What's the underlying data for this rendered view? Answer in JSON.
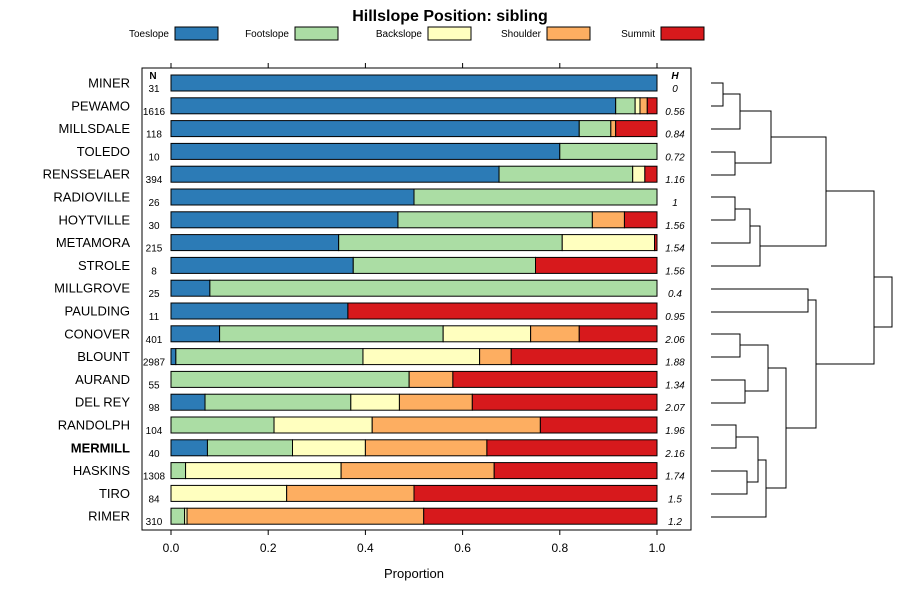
{
  "chart_data": {
    "type": "stacked-bar",
    "title": "Hillslope Position: sibling",
    "xlabel": "Proportion",
    "xlim": [
      0,
      1
    ],
    "xticks": [
      "0.0",
      "0.2",
      "0.4",
      "0.6",
      "0.8",
      "1.0"
    ],
    "n_header": "N",
    "h_header": "H",
    "highlight": "MERMILL",
    "classes": [
      {
        "name": "Toeslope",
        "color": "#2c7bb6"
      },
      {
        "name": "Footslope",
        "color": "#abdda4"
      },
      {
        "name": "Backslope",
        "color": "#ffffbf"
      },
      {
        "name": "Shoulder",
        "color": "#fdae61"
      },
      {
        "name": "Summit",
        "color": "#d7191c"
      }
    ],
    "rows": [
      {
        "name": "MINER",
        "n": "31",
        "h": "0",
        "values": [
          1.0,
          0,
          0,
          0,
          0
        ]
      },
      {
        "name": "PEWAMO",
        "n": "1616",
        "h": "0.56",
        "values": [
          0.915,
          0.04,
          0.01,
          0.015,
          0.02
        ]
      },
      {
        "name": "MILLSDALE",
        "n": "118",
        "h": "0.84",
        "values": [
          0.84,
          0.065,
          0,
          0.01,
          0.085
        ]
      },
      {
        "name": "TOLEDO",
        "n": "10",
        "h": "0.72",
        "values": [
          0.8,
          0.2,
          0,
          0,
          0
        ]
      },
      {
        "name": "RENSSELAER",
        "n": "394",
        "h": "1.16",
        "values": [
          0.675,
          0.275,
          0.025,
          0,
          0.025
        ]
      },
      {
        "name": "RADIOVILLE",
        "n": "26",
        "h": "1",
        "values": [
          0.5,
          0.5,
          0,
          0,
          0
        ]
      },
      {
        "name": "HOYTVILLE",
        "n": "30",
        "h": "1.56",
        "values": [
          0.467,
          0.4,
          0,
          0.066,
          0.067
        ]
      },
      {
        "name": "METAMORA",
        "n": "215",
        "h": "1.54",
        "values": [
          0.345,
          0.46,
          0.19,
          0,
          0.005
        ]
      },
      {
        "name": "STROLE",
        "n": "8",
        "h": "1.56",
        "values": [
          0.375,
          0.375,
          0,
          0,
          0.25
        ]
      },
      {
        "name": "MILLGROVE",
        "n": "25",
        "h": "0.4",
        "values": [
          0.08,
          0.92,
          0,
          0,
          0
        ]
      },
      {
        "name": "PAULDING",
        "n": "11",
        "h": "0.95",
        "values": [
          0.364,
          0,
          0,
          0,
          0.636
        ]
      },
      {
        "name": "CONOVER",
        "n": "401",
        "h": "2.06",
        "values": [
          0.1,
          0.46,
          0.18,
          0.1,
          0.16
        ]
      },
      {
        "name": "BLOUNT",
        "n": "2987",
        "h": "1.88",
        "values": [
          0.01,
          0.385,
          0.24,
          0.065,
          0.3
        ]
      },
      {
        "name": "AURAND",
        "n": "55",
        "h": "1.34",
        "values": [
          0,
          0.49,
          0,
          0.09,
          0.42
        ]
      },
      {
        "name": "DEL REY",
        "n": "98",
        "h": "2.07",
        "values": [
          0.07,
          0.3,
          0.1,
          0.15,
          0.38
        ]
      },
      {
        "name": "RANDOLPH",
        "n": "104",
        "h": "1.96",
        "values": [
          0,
          0.212,
          0.202,
          0.346,
          0.24
        ]
      },
      {
        "name": "MERMILL",
        "n": "40",
        "h": "2.16",
        "values": [
          0.075,
          0.175,
          0.15,
          0.25,
          0.35
        ]
      },
      {
        "name": "HASKINS",
        "n": "1308",
        "h": "1.74",
        "values": [
          0,
          0.03,
          0.32,
          0.315,
          0.335
        ]
      },
      {
        "name": "TIRO",
        "n": "84",
        "h": "1.5",
        "values": [
          0,
          0,
          0.238,
          0.262,
          0.5
        ]
      },
      {
        "name": "RIMER",
        "n": "310",
        "h": "1.2",
        "values": [
          0,
          0.028,
          0.005,
          0.487,
          0.48
        ]
      }
    ]
  }
}
